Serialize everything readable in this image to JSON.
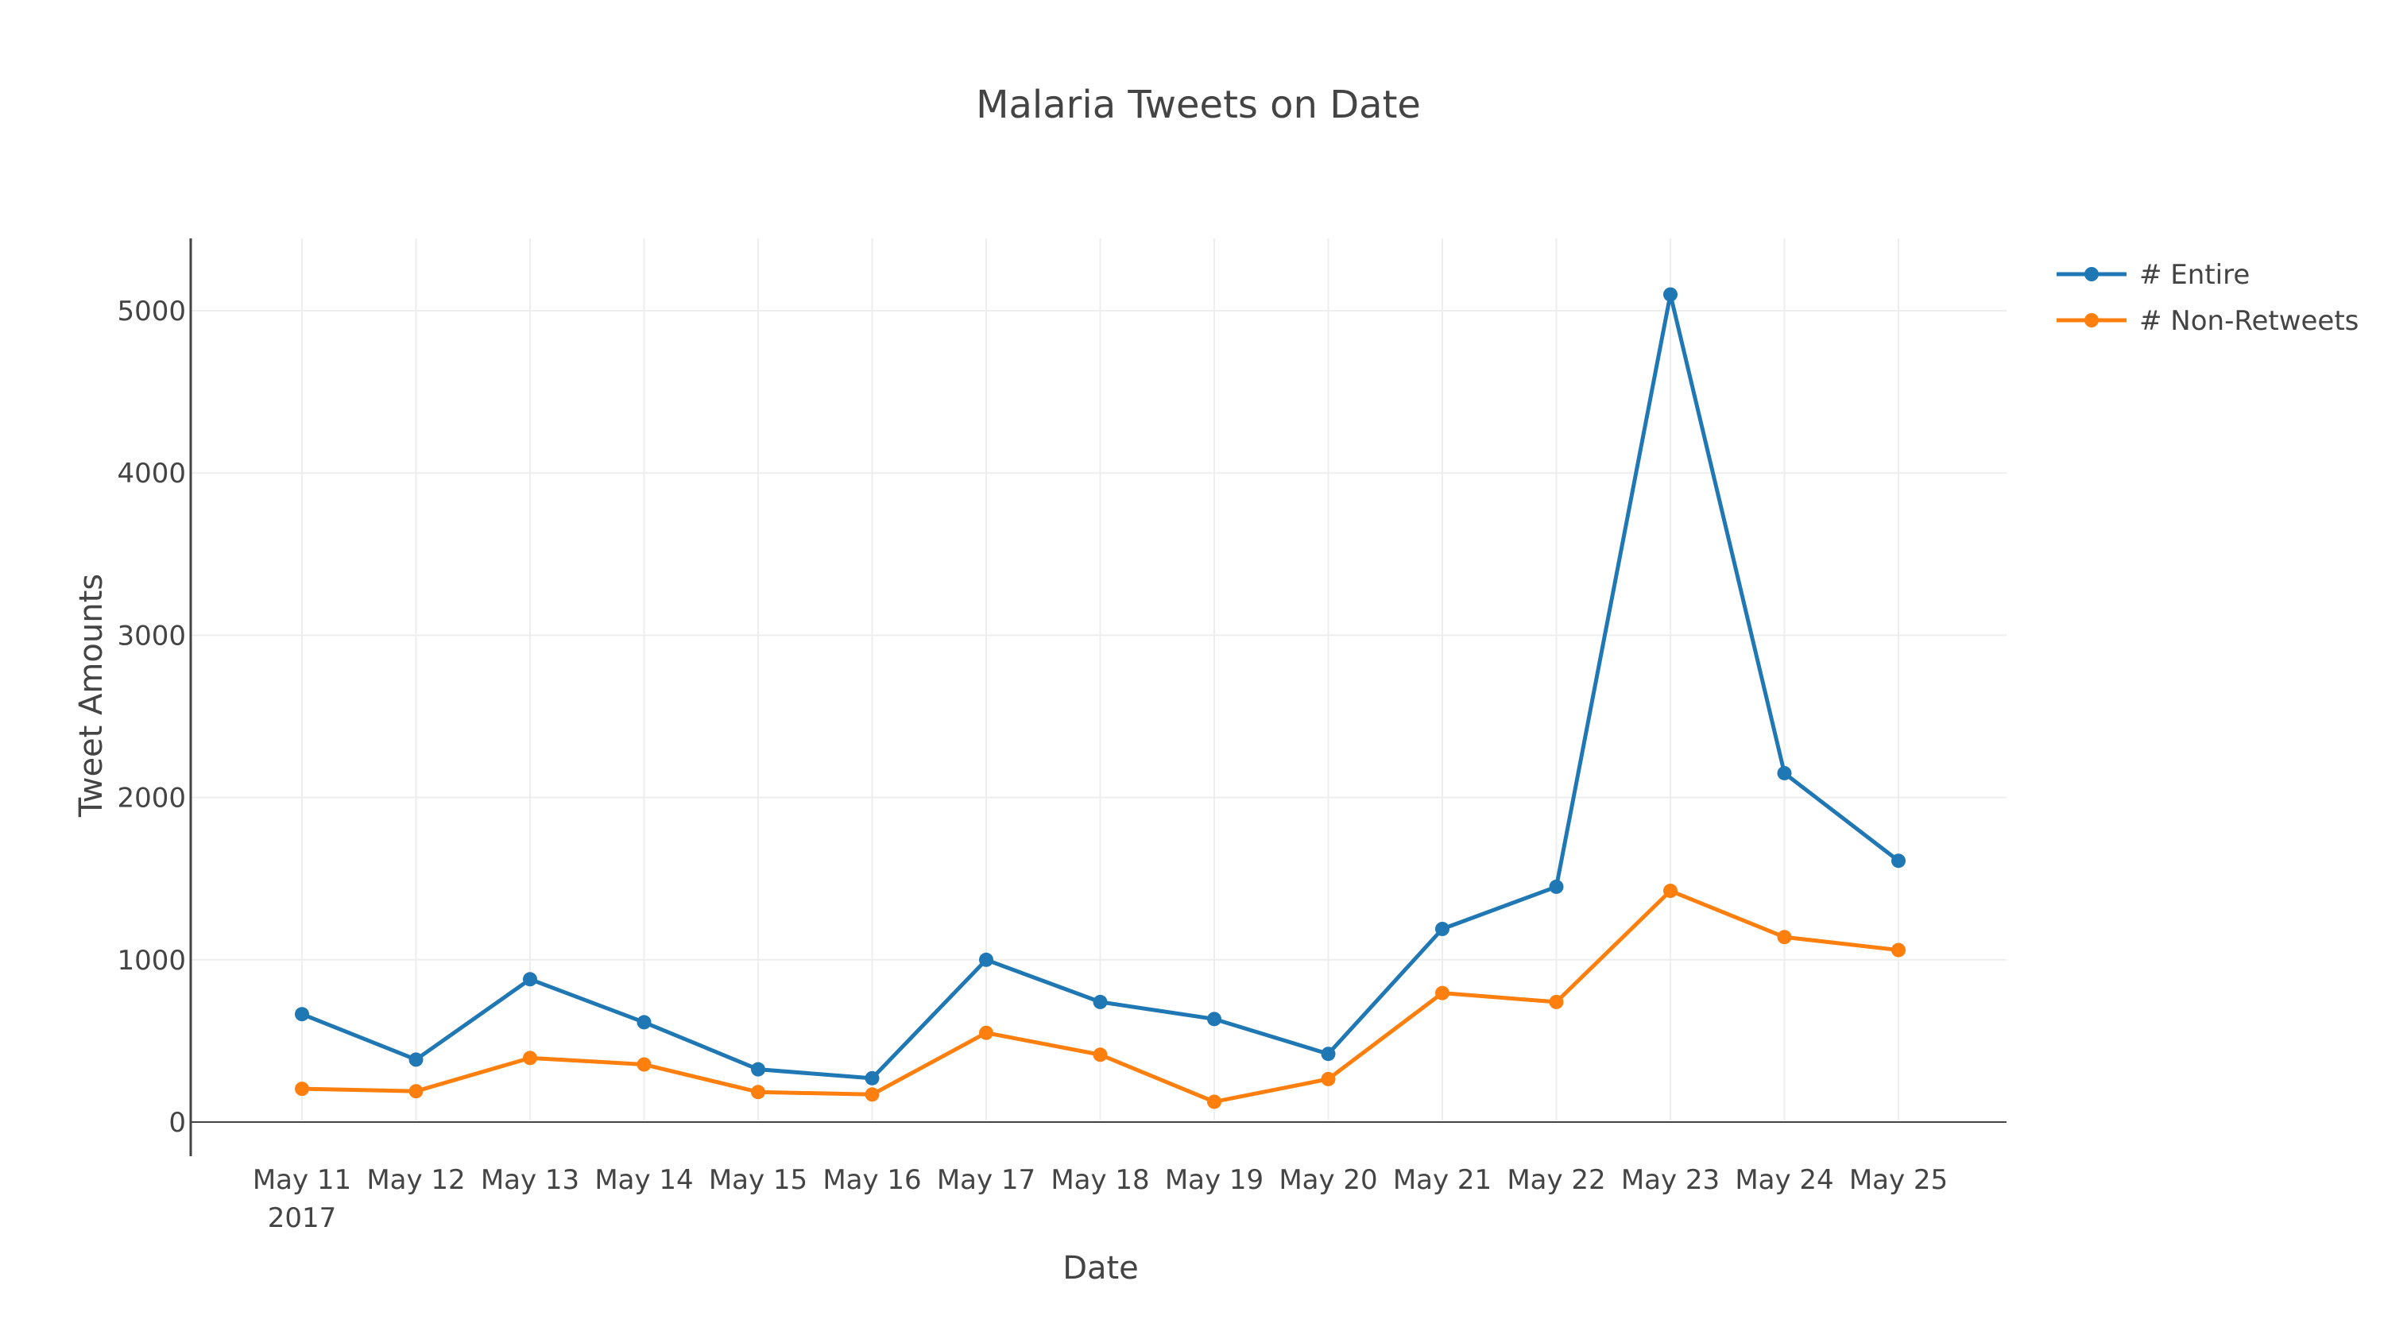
{
  "chart_data": {
    "type": "line",
    "title": "Malaria Tweets on Date",
    "xlabel": "Date",
    "ylabel": "Tweet Amounts",
    "categories": [
      "May 11",
      "May 12",
      "May 13",
      "May 14",
      "May 15",
      "May 16",
      "May 17",
      "May 18",
      "May 19",
      "May 20",
      "May 21",
      "May 22",
      "May 23",
      "May 24",
      "May 25"
    ],
    "first_tick_year": "2017",
    "y_ticks": [
      0,
      1000,
      2000,
      3000,
      4000,
      5000
    ],
    "ylim": [
      -200,
      5450
    ],
    "grid": true,
    "legend_position": "top-right",
    "series": [
      {
        "name": "# Entire",
        "color": "#1f77b4",
        "values": [
          665,
          385,
          880,
          615,
          325,
          270,
          1000,
          740,
          635,
          420,
          1190,
          1450,
          5100,
          2150,
          1610
        ]
      },
      {
        "name": "# Non-Retweets",
        "color": "#ff7f0e",
        "values": [
          205,
          190,
          395,
          355,
          185,
          170,
          550,
          415,
          125,
          265,
          795,
          740,
          1425,
          1140,
          1060
        ]
      }
    ]
  }
}
